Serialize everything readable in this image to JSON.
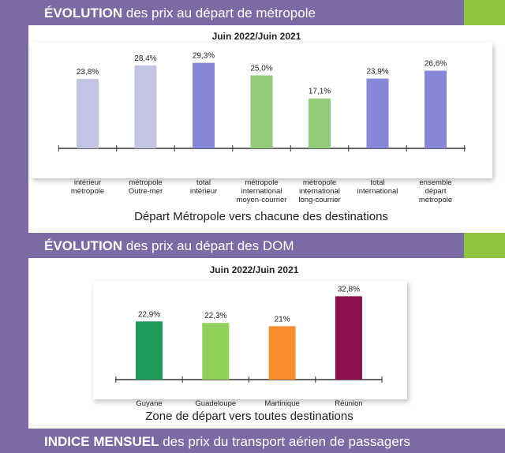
{
  "colors": {
    "band": "#7b6aa3",
    "accent_green": "#8cc63f"
  },
  "sections": [
    {
      "title_bold": "ÉVOLUTION",
      "title_rest": " des prix au départ de métropole"
    },
    {
      "title_bold": "ÉVOLUTION",
      "title_rest": " des prix au départ des DOM"
    },
    {
      "title_bold": "INDICE MENSUEL",
      "title_rest": " des prix du transport aérien de passagers"
    }
  ],
  "chart_data": [
    {
      "type": "bar",
      "title": "Juin 2022/Juin 2021",
      "caption": "Départ Métropole vers chacune des destinations",
      "categories": [
        [
          "intérieur",
          "métropole"
        ],
        [
          "métropole",
          "Outre-mer"
        ],
        [
          "total",
          "intérieur"
        ],
        [
          "métropole",
          "international",
          "moyen-courrier"
        ],
        [
          "métropole",
          "international",
          "long-courrier"
        ],
        [
          "total",
          "international"
        ],
        [
          "ensemble",
          "départ",
          "métropole"
        ]
      ],
      "values": [
        23.8,
        28.4,
        29.3,
        25.0,
        17.1,
        23.9,
        26.6
      ],
      "value_labels": [
        "23,8%",
        "28,4%",
        "29,3%",
        "25,0%",
        "17,1%",
        "23,9%",
        "26,6%"
      ],
      "colors": [
        "#c3c3e3",
        "#c3c3e3",
        "#8787d9",
        "#93cb7b",
        "#93cb7b",
        "#8787d9",
        "#8787d9"
      ],
      "ylim": [
        0,
        30
      ]
    },
    {
      "type": "bar",
      "title": "Juin 2022/Juin 2021",
      "caption": "Zone de départ vers toutes destinations",
      "categories": [
        [
          "Guyane"
        ],
        [
          "Guadeloupe"
        ],
        [
          "Martinique"
        ],
        [
          "Réunion"
        ]
      ],
      "values": [
        22.9,
        22.3,
        21.0,
        32.8
      ],
      "value_labels": [
        "22,9%",
        "22,3%",
        "21%",
        "32,8%"
      ],
      "colors": [
        "#1e9a5a",
        "#8fd15a",
        "#f68c2b",
        "#8e0f4e"
      ],
      "ylim": [
        0,
        33
      ]
    }
  ]
}
